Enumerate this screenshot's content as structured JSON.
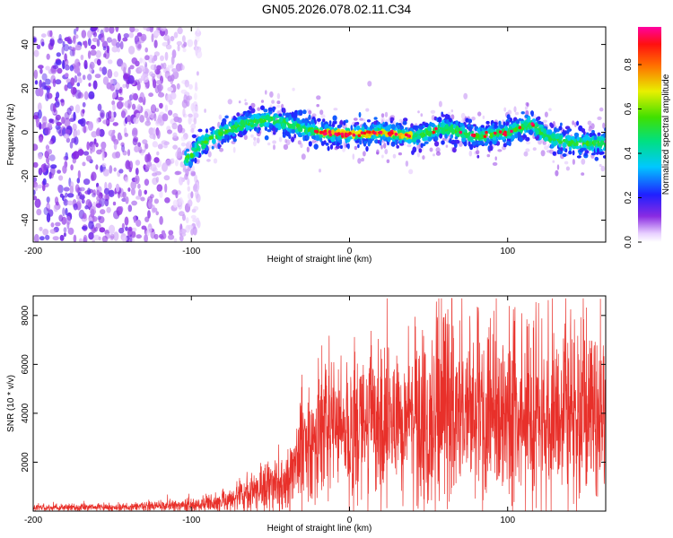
{
  "title": "GN05.2026.078.02.11.C34",
  "chart_data": [
    {
      "type": "heatmap",
      "title": "GN05.2026.078.02.11.C34",
      "xlabel": "Height of straight line (km)",
      "ylabel": "Frequency (Hz)",
      "xlim": [
        -200,
        162
      ],
      "ylim": [
        -50,
        48
      ],
      "xticks": [
        "-200",
        "-100",
        "0",
        "100"
      ],
      "yticks": [
        "40",
        "20",
        "0",
        "-20",
        "-40"
      ],
      "colorbar": {
        "label": "Normalized spectral amplitude",
        "range": [
          0,
          0.97
        ],
        "ticks": [
          "0.0",
          "0.2",
          "0.4",
          "0.6",
          "0.8"
        ]
      },
      "signal_track": {
        "description_points_km_hz": [
          [
            -102,
            -12
          ],
          [
            -95,
            -6
          ],
          [
            -80,
            0
          ],
          [
            -65,
            4
          ],
          [
            -50,
            6
          ],
          [
            -40,
            4
          ],
          [
            -30,
            2
          ],
          [
            -20,
            0
          ],
          [
            0,
            -1
          ],
          [
            20,
            0
          ],
          [
            40,
            -2
          ],
          [
            60,
            2
          ],
          [
            80,
            -2
          ],
          [
            100,
            0
          ],
          [
            115,
            4
          ],
          [
            125,
            -2
          ],
          [
            140,
            -5
          ],
          [
            162,
            -5
          ]
        ],
        "noise_region_km": [
          -200,
          -100
        ]
      }
    },
    {
      "type": "line",
      "xlabel": "Height of straight line (km)",
      "ylabel": "SNR (10 * v/v)",
      "xlim": [
        -200,
        162
      ],
      "ylim": [
        0,
        8800
      ],
      "xticks": [
        "-200",
        "-100",
        "0",
        "100"
      ],
      "yticks": [
        "8000",
        "6000",
        "4000",
        "2000"
      ],
      "series": [
        {
          "name": "SNR",
          "color": "#e8302a",
          "envelope_km_snr": [
            [
              -200,
              150
            ],
            [
              -150,
              150
            ],
            [
              -100,
              250
            ],
            [
              -80,
              400
            ],
            [
              -60,
              800
            ],
            [
              -40,
              1200
            ],
            [
              -30,
              2500
            ],
            [
              -20,
              3000
            ],
            [
              -10,
              3500
            ],
            [
              0,
              3500
            ],
            [
              20,
              3800
            ],
            [
              40,
              4000
            ],
            [
              60,
              4200
            ],
            [
              80,
              4000
            ],
            [
              100,
              4000
            ],
            [
              120,
              4000
            ],
            [
              140,
              4000
            ],
            [
              162,
              4000
            ]
          ],
          "max_value": 8700
        }
      ]
    }
  ]
}
